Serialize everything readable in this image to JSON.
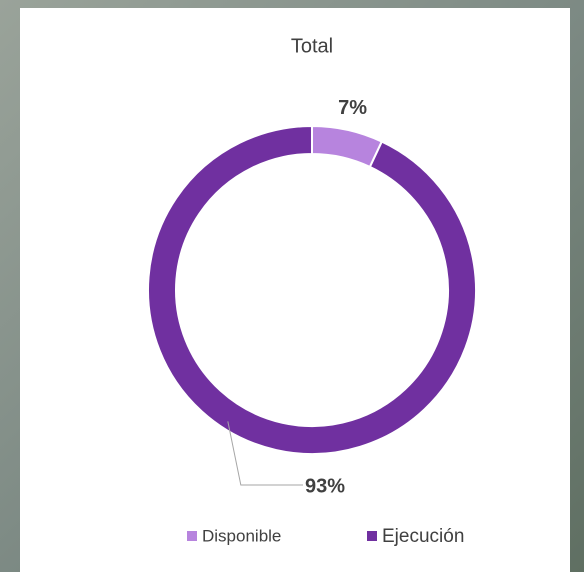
{
  "chart_data": {
    "type": "pie",
    "title": "Total",
    "categories": [
      "Disponible",
      "Ejecución"
    ],
    "values": [
      7,
      93
    ],
    "value_labels": [
      "7%",
      "93%"
    ],
    "colors": [
      "#b784de",
      "#7030a0"
    ],
    "donut": true,
    "legend": "bottom"
  }
}
